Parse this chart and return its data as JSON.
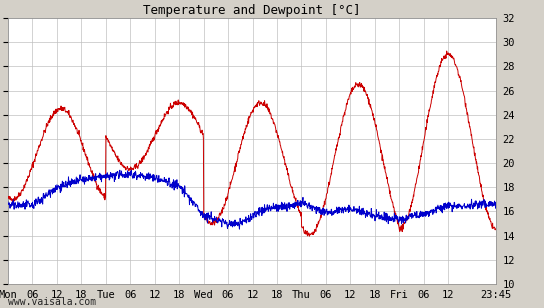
{
  "title": "Temperature and Dewpoint [°C]",
  "ylim": [
    10,
    32
  ],
  "yticks": [
    10,
    12,
    14,
    16,
    18,
    20,
    22,
    24,
    26,
    28,
    30,
    32
  ],
  "x_tick_labels": [
    "Mon",
    "06",
    "12",
    "18",
    "Tue",
    "06",
    "12",
    "18",
    "Wed",
    "06",
    "12",
    "18",
    "Thu",
    "06",
    "12",
    "18",
    "Fri",
    "06",
    "12",
    "23:45"
  ],
  "x_tick_positions": [
    0,
    6,
    12,
    18,
    24,
    30,
    36,
    42,
    48,
    54,
    60,
    66,
    72,
    78,
    84,
    90,
    96,
    102,
    108,
    119.75
  ],
  "total_hours": 119.75,
  "temp_color": "#cc0000",
  "dewpoint_color": "#0000cc",
  "background_color": "#d4d0c8",
  "plot_bg_color": "#ffffff",
  "grid_color": "#c0c0c0",
  "title_fontsize": 9,
  "tick_fontsize": 7.5,
  "watermark": "www.vaisala.com",
  "watermark_fontsize": 7
}
